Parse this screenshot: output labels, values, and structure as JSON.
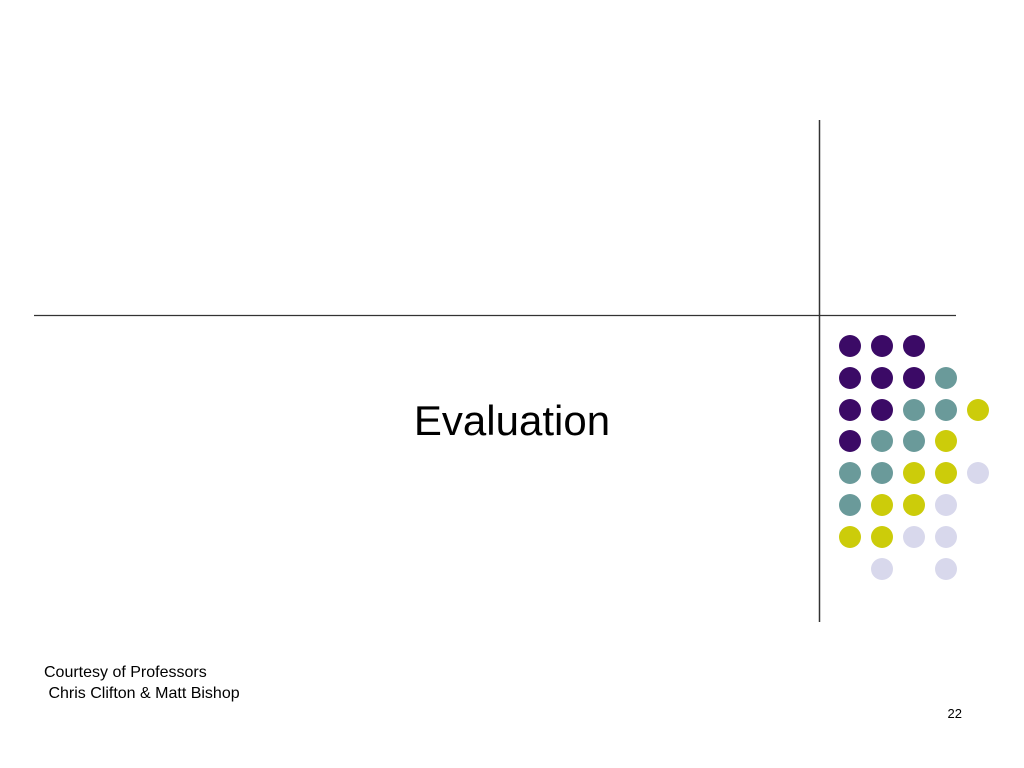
{
  "slide": {
    "title": "Evaluation",
    "footer": {
      "lines": [
        "Courtesy of Professors",
        " Chris Clifton & Matt Bishop"
      ]
    },
    "page_number": "22"
  }
}
